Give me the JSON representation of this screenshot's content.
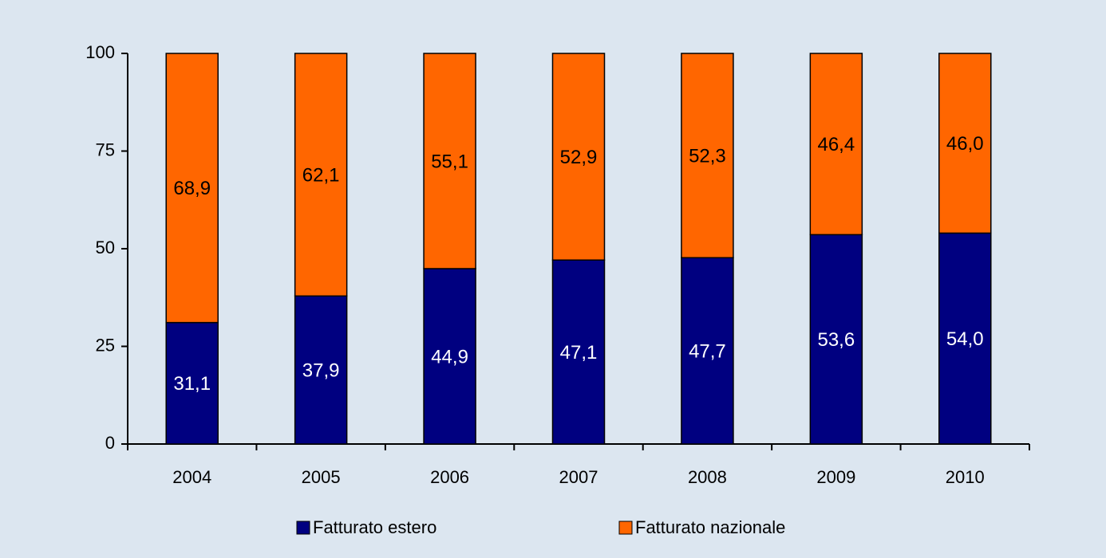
{
  "chart_data": {
    "type": "stacked_bar",
    "categories": [
      "2004",
      "2005",
      "2006",
      "2007",
      "2008",
      "2009",
      "2010"
    ],
    "series": [
      {
        "name": "Fatturato estero",
        "color": "#000080",
        "label_color": "#ffffff",
        "values": [
          31.1,
          37.9,
          44.9,
          47.1,
          47.7,
          53.6,
          54.0
        ],
        "value_labels": [
          "31,1",
          "37,9",
          "44,9",
          "47,1",
          "47,7",
          "53,6",
          "54,0"
        ]
      },
      {
        "name": "Fatturato nazionale",
        "color": "#ff6600",
        "label_color": "#000000",
        "values": [
          68.9,
          62.1,
          55.1,
          52.9,
          52.3,
          46.4,
          46.0
        ],
        "value_labels": [
          "68,9",
          "62,1",
          "55,1",
          "52,9",
          "52,3",
          "46,4",
          "46,0"
        ]
      }
    ],
    "ylim": [
      0,
      100
    ],
    "yticks": [
      0,
      25,
      50,
      75,
      100
    ],
    "grid": false,
    "legend": "bottom"
  }
}
